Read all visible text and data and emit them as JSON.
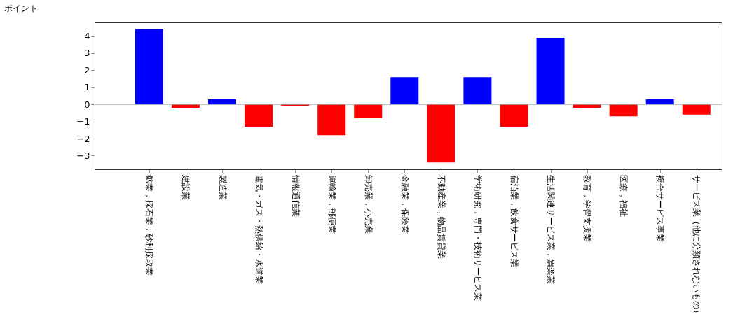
{
  "chart_data": {
    "type": "bar",
    "ylabel": "ポイント",
    "categories": [
      "鉱業，採石業，砂利採取業",
      "建設業",
      "製造業",
      "電気・ガス・熱供給・水道業",
      "情報通信業",
      "運輸業，郵便業",
      "卸売業，小売業",
      "金融業，保険業",
      "不動産業，物品賃貸業",
      "学術研究，専門・技術サービス業",
      "宿泊業，飲食サービス業",
      "生活関連サービス業，娯楽業",
      "教育，学習支援業",
      "医療，福祉",
      "複合サービス事業",
      "サービス業（他に分類されないもの）"
    ],
    "values": [
      4.4,
      -0.2,
      0.3,
      -1.3,
      -0.1,
      -1.8,
      -0.8,
      1.6,
      -3.4,
      1.6,
      -1.3,
      3.9,
      -0.2,
      -0.7,
      0.3,
      -0.6
    ],
    "colors": [
      "#0000ff",
      "#ff0000",
      "#0000ff",
      "#ff0000",
      "#ff0000",
      "#ff0000",
      "#ff0000",
      "#0000ff",
      "#ff0000",
      "#0000ff",
      "#ff0000",
      "#0000ff",
      "#ff0000",
      "#ff0000",
      "#0000ff",
      "#ff0000"
    ],
    "ylim": [
      -3.8,
      4.8
    ],
    "yticks": [
      -3,
      -2,
      -1,
      0,
      1,
      2,
      3,
      4
    ],
    "ref_lines": [
      {
        "axis": "y",
        "value": 0,
        "color": "#a0a0a0"
      }
    ],
    "grid": false
  }
}
